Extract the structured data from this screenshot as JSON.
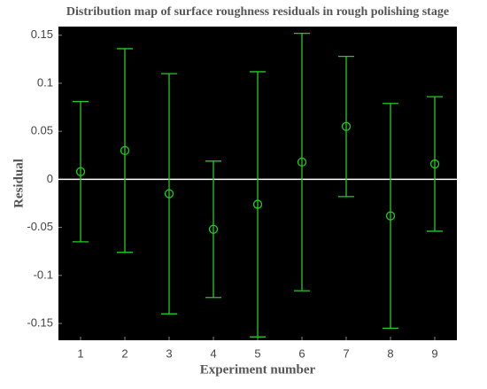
{
  "chart_data": {
    "type": "errorbar",
    "title": "Distribution map of surface roughness residuals in rough polishing stage",
    "x_label": "Experiment number",
    "y_label": "Residual",
    "x": [
      1,
      2,
      3,
      4,
      5,
      6,
      7,
      8,
      9
    ],
    "series": [
      {
        "color": "#22cc22",
        "values": [
          0.008,
          0.03,
          -0.015,
          -0.052,
          -0.026,
          0.018,
          0.055,
          -0.038,
          0.016
        ],
        "errors": [
          0.073,
          0.106,
          0.125,
          0.071,
          0.138,
          0.134,
          0.073,
          0.117,
          0.07
        ]
      }
    ],
    "xlim": [
      0.5,
      9.5
    ],
    "xticks": [
      1,
      2,
      3,
      4,
      5,
      6,
      7,
      8,
      9
    ],
    "ylim": [
      -0.1675,
      0.159
    ],
    "yticks": [
      -0.15,
      -0.1,
      -0.05,
      0,
      0.05,
      0.1,
      0.15
    ],
    "reference_line": 0,
    "reference_color": "#ffffff",
    "background": "#000000"
  }
}
